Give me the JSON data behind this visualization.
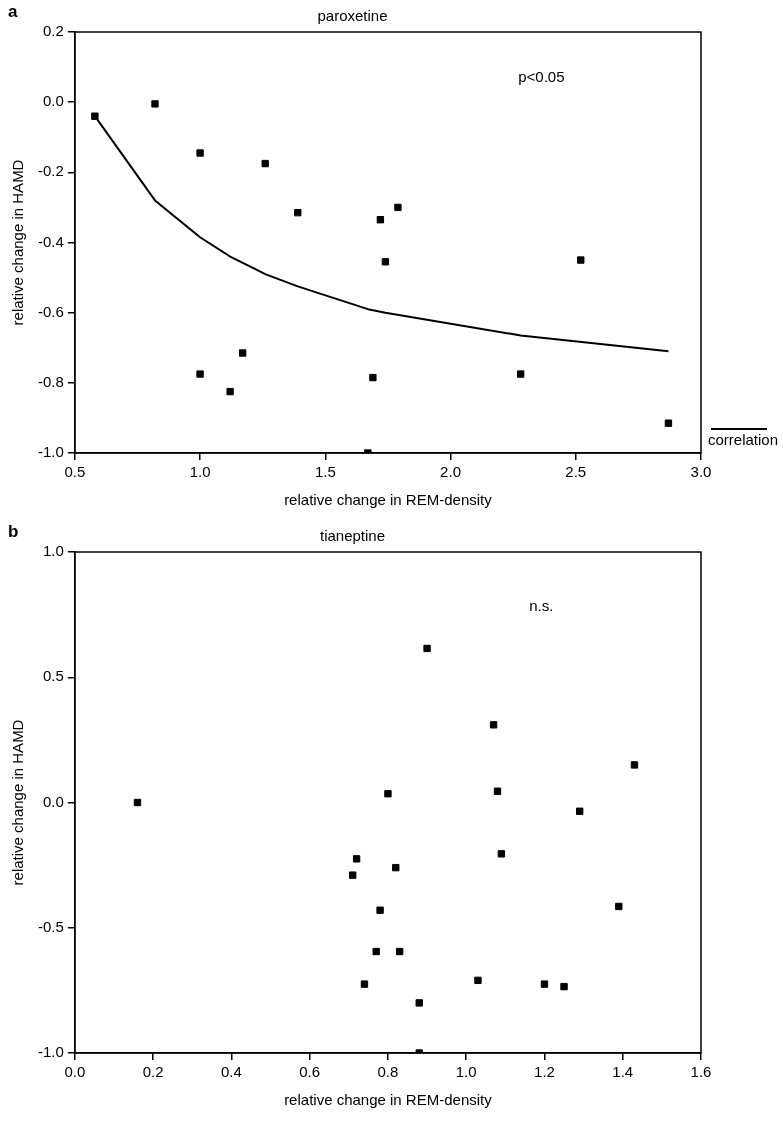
{
  "chart_data": [
    {
      "type": "scatter",
      "title": "paroxetine",
      "xlabel": "relative change in REM-density",
      "ylabel": "relative change in HAMD",
      "annotations": [
        "a",
        "p<0.05"
      ],
      "xlim": [
        0.5,
        3.0
      ],
      "xticks": [
        0.5,
        {
          "value": 1,
          "label": "1.0"
        },
        1.5,
        {
          "value": 2,
          "label": "2.0"
        },
        2.5,
        {
          "value": 3,
          "label": "3.0"
        }
      ],
      "ylim": [
        -1.0,
        0.2
      ],
      "yticks": [
        {
          "value": -1,
          "label": "-1.0"
        },
        -0.8,
        -0.6,
        -0.4,
        -0.2,
        {
          "value": 0,
          "label": "0.0"
        },
        0.2
      ],
      "grid": false,
      "legend": "bottom right",
      "marker": "square",
      "series": [
        {
          "type": "scatter",
          "color": "#000000",
          "x": [
            0.58,
            0.82,
            1.0,
            1.26,
            1.39,
            1.72,
            1.79,
            1.74,
            2.52,
            1.0,
            1.17,
            1.12,
            1.69,
            2.28,
            2.87,
            1.67
          ],
          "values": [
            -0.04,
            -0.005,
            -0.145,
            -0.175,
            -0.315,
            -0.335,
            -0.3,
            -0.455,
            -0.45,
            -0.775,
            -0.715,
            -0.825,
            -0.785,
            -0.775,
            -0.915,
            -1.0
          ]
        },
        {
          "type": "line",
          "name": "correlation",
          "color": "#000000",
          "line_style": "solid",
          "marker": "none",
          "x": [
            0.58,
            0.82,
            1.0,
            1.12,
            1.26,
            1.39,
            1.67,
            1.74,
            2.28,
            2.87
          ],
          "values": [
            -0.04,
            -0.28,
            -0.385,
            -0.44,
            -0.49,
            -0.525,
            -0.59,
            -0.6,
            -0.665,
            -0.71
          ]
        }
      ]
    },
    {
      "type": "scatter",
      "title": "tianeptine",
      "xlabel": "relative change in REM-density",
      "ylabel": "relative change in HAMD",
      "annotations": [
        "b",
        "n.s."
      ],
      "xlim": [
        0.0,
        1.6
      ],
      "xticks": [
        {
          "value": 0,
          "label": "0.0"
        },
        0.2,
        0.4,
        0.6,
        0.8,
        {
          "value": 1,
          "label": "1.0"
        },
        1.2,
        1.4,
        1.6
      ],
      "ylim": [
        -1.0,
        1.0
      ],
      "yticks": [
        {
          "value": -1,
          "label": "-1.0"
        },
        -0.5,
        {
          "value": 0,
          "label": "0.0"
        },
        0.5,
        {
          "value": 1,
          "label": "1.0"
        }
      ],
      "grid": false,
      "legend": false,
      "marker": "square",
      "series": [
        {
          "type": "scatter",
          "color": "#000000",
          "x": [
            0.16,
            0.9,
            0.8,
            1.07,
            1.08,
            1.43,
            1.29,
            0.72,
            0.71,
            0.82,
            1.09,
            0.78,
            0.77,
            0.83,
            1.39,
            0.74,
            1.03,
            1.2,
            1.25,
            0.88,
            0.88
          ],
          "values": [
            0.0,
            0.615,
            0.035,
            0.31,
            0.045,
            0.15,
            -0.035,
            -0.225,
            -0.29,
            -0.26,
            -0.205,
            -0.43,
            -0.595,
            -0.595,
            -0.415,
            -0.725,
            -0.71,
            -0.725,
            -0.735,
            -0.8,
            -1.0
          ]
        }
      ]
    }
  ]
}
